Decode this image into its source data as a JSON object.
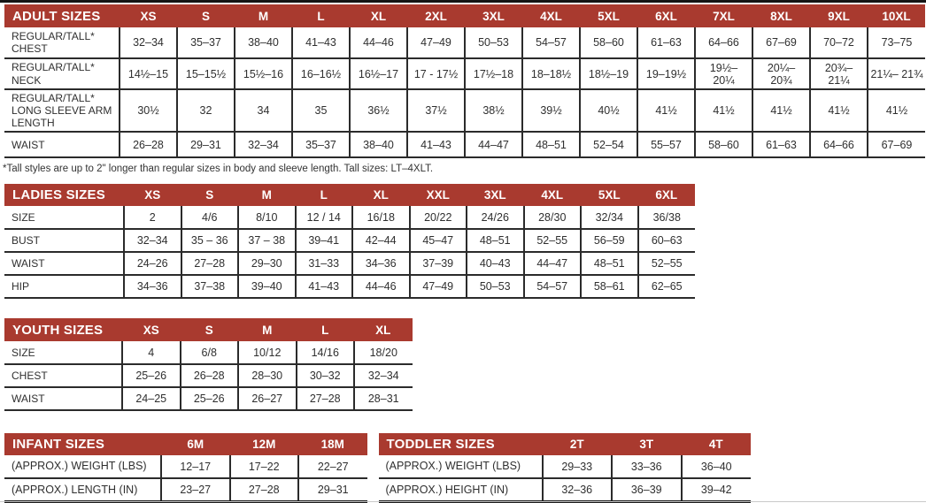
{
  "theme": {
    "header_bg": "#a93a2f",
    "header_text": "#ffffff",
    "cell_text": "#2f2f2f",
    "grid_line": "#2b2b2b"
  },
  "tables": {
    "adult": {
      "title": "ADULT SIZES",
      "columns": [
        "XS",
        "S",
        "M",
        "L",
        "XL",
        "2XL",
        "3XL",
        "4XL",
        "5XL",
        "6XL",
        "7XL",
        "8XL",
        "9XL",
        "10XL"
      ],
      "rows": [
        {
          "label": "REGULAR/TALL* CHEST",
          "values": [
            "32–34",
            "35–37",
            "38–40",
            "41–43",
            "44–46",
            "47–49",
            "50–53",
            "54–57",
            "58–60",
            "61–63",
            "64–66",
            "67–69",
            "70–72",
            "73–75"
          ]
        },
        {
          "label": "REGULAR/TALL* NECK",
          "values": [
            "14½–15",
            "15–15½",
            "15½–16",
            "16–16½",
            "16½–17",
            "17 - 17½",
            "17½–18",
            "18–18½",
            "18½–19",
            "19–19½",
            "19½– 20¼",
            "20¼– 20¾",
            "20¾– 21¼",
            "21¼– 21¾"
          ]
        },
        {
          "label": "REGULAR/TALL* LONG SLEEVE ARM LENGTH",
          "values": [
            "30½",
            "32",
            "34",
            "35",
            "36½",
            "37½",
            "38½",
            "39½",
            "40½",
            "41½",
            "41½",
            "41½",
            "41½",
            "41½"
          ]
        },
        {
          "label": "WAIST",
          "values": [
            "26–28",
            "29–31",
            "32–34",
            "35–37",
            "38–40",
            "41–43",
            "44–47",
            "48–51",
            "52–54",
            "55–57",
            "58–60",
            "61–63",
            "64–66",
            "67–69"
          ]
        }
      ],
      "footnote": "*Tall styles are up to 2\" longer than regular sizes in body and sleeve length. Tall sizes: LT–4XLT."
    },
    "ladies": {
      "title": "LADIES SIZES",
      "columns": [
        "XS",
        "S",
        "M",
        "L",
        "XL",
        "XXL",
        "3XL",
        "4XL",
        "5XL",
        "6XL"
      ],
      "rows": [
        {
          "label": "SIZE",
          "values": [
            "2",
            "4/6",
            "8/10",
            "12 / 14",
            "16/18",
            "20/22",
            "24/26",
            "28/30",
            "32/34",
            "36/38"
          ]
        },
        {
          "label": "BUST",
          "values": [
            "32–34",
            "35 – 36",
            "37 – 38",
            "39–41",
            "42–44",
            "45–47",
            "48–51",
            "52–55",
            "56–59",
            "60–63"
          ]
        },
        {
          "label": "WAIST",
          "values": [
            "24–26",
            "27–28",
            "29–30",
            "31–33",
            "34–36",
            "37–39",
            "40–43",
            "44–47",
            "48–51",
            "52–55"
          ]
        },
        {
          "label": "HIP",
          "values": [
            "34–36",
            "37–38",
            "39–40",
            "41–43",
            "44–46",
            "47–49",
            "50–53",
            "54–57",
            "58–61",
            "62–65"
          ]
        }
      ]
    },
    "youth": {
      "title": "YOUTH SIZES",
      "columns": [
        "XS",
        "S",
        "M",
        "L",
        "XL"
      ],
      "rows": [
        {
          "label": "SIZE",
          "values": [
            "4",
            "6/8",
            "10/12",
            "14/16",
            "18/20"
          ]
        },
        {
          "label": "CHEST",
          "values": [
            "25–26",
            "26–28",
            "28–30",
            "30–32",
            "32–34"
          ]
        },
        {
          "label": "WAIST",
          "values": [
            "24–25",
            "25–26",
            "26–27",
            "27–28",
            "28–31"
          ]
        }
      ]
    },
    "infant": {
      "title": "INFANT SIZES",
      "columns": [
        "6M",
        "12M",
        "18M"
      ],
      "rows": [
        {
          "label": "(APPROX.) WEIGHT (LBS)",
          "values": [
            "12–17",
            "17–22",
            "22–27"
          ]
        },
        {
          "label": "(APPROX.) LENGTH (IN)",
          "values": [
            "23–27",
            "27–28",
            "29–31"
          ]
        }
      ]
    },
    "toddler": {
      "title": "TODDLER SIZES",
      "columns": [
        "2T",
        "3T",
        "4T"
      ],
      "rows": [
        {
          "label": "(APPROX.) WEIGHT (LBS)",
          "values": [
            "29–33",
            "33–36",
            "36–40"
          ]
        },
        {
          "label": "(APPROX.) HEIGHT (IN)",
          "values": [
            "32–36",
            "36–39",
            "39–42"
          ]
        }
      ]
    }
  }
}
